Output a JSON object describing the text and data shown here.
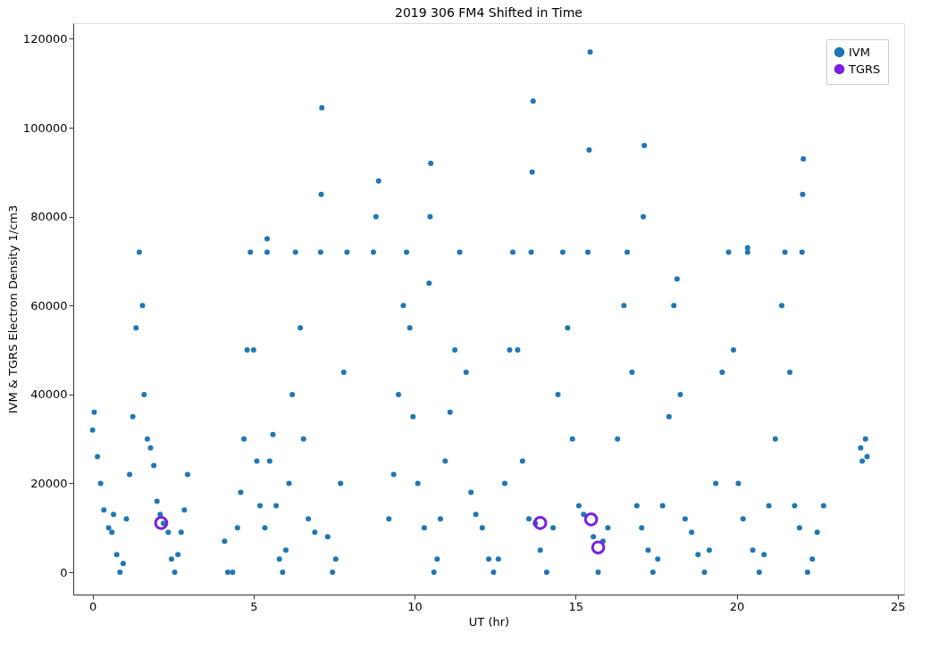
{
  "chart_data": {
    "type": "scatter",
    "title": "2019 306 FM4 Shifted in Time",
    "xlabel": "UT (hr)",
    "ylabel": "IVM & TGRS Electron Density 1/cm3",
    "xlim": [
      -0.6,
      25.2
    ],
    "ylim": [
      -5000,
      123500
    ],
    "xticks": [
      0,
      5,
      10,
      15,
      20,
      25
    ],
    "yticks": [
      0,
      20000,
      40000,
      60000,
      80000,
      100000,
      120000
    ],
    "grid": false,
    "legend": "top right",
    "marker": "circle",
    "series": [
      {
        "name": "IVM",
        "color": "#1f77b4",
        "x": [
          0.0,
          0.05,
          0.15,
          0.25,
          0.35,
          0.5,
          0.6,
          0.65,
          0.75,
          0.85,
          0.95,
          1.05,
          1.15,
          1.25,
          1.35,
          1.45,
          1.55,
          1.6,
          1.7,
          1.8,
          1.9,
          2.0,
          2.1,
          2.2,
          2.35,
          2.45,
          2.55,
          2.65,
          2.75,
          2.85,
          2.95,
          4.1,
          4.2,
          4.35,
          4.5,
          4.6,
          4.7,
          4.8,
          4.9,
          5.0,
          5.1,
          5.2,
          5.35,
          5.42,
          5.42,
          5.5,
          5.6,
          5.7,
          5.8,
          5.9,
          6.0,
          6.1,
          6.2,
          6.3,
          6.45,
          6.55,
          6.7,
          6.9,
          7.08,
          7.1,
          7.12,
          7.3,
          7.45,
          7.55,
          7.7,
          7.8,
          7.9,
          8.72,
          8.8,
          8.88,
          9.2,
          9.35,
          9.5,
          9.65,
          9.75,
          9.85,
          9.95,
          10.1,
          10.3,
          10.45,
          10.48,
          10.5,
          10.6,
          10.7,
          10.8,
          10.95,
          11.1,
          11.25,
          11.4,
          11.6,
          11.75,
          11.9,
          12.1,
          12.3,
          12.45,
          12.6,
          12.8,
          12.95,
          13.05,
          13.2,
          13.35,
          13.55,
          13.62,
          13.65,
          13.68,
          13.75,
          13.9,
          14.1,
          14.3,
          14.45,
          14.6,
          14.75,
          14.9,
          15.1,
          15.25,
          15.38,
          15.42,
          15.45,
          15.55,
          15.7,
          15.85,
          16.0,
          16.3,
          16.5,
          16.6,
          16.75,
          16.9,
          17.05,
          17.1,
          17.13,
          17.25,
          17.4,
          17.55,
          17.7,
          17.9,
          18.05,
          18.15,
          18.25,
          18.4,
          18.6,
          18.8,
          19.0,
          19.15,
          19.35,
          19.55,
          19.75,
          19.9,
          20.05,
          20.2,
          20.34,
          20.34,
          20.5,
          20.7,
          20.85,
          21.0,
          21.2,
          21.4,
          21.5,
          21.65,
          21.8,
          21.95,
          22.03,
          22.05,
          22.07,
          22.2,
          22.35,
          22.5,
          22.7,
          23.85,
          23.9,
          24.0,
          24.05
        ],
        "values": [
          32000,
          36000,
          26000,
          20000,
          14000,
          10000,
          9000,
          13000,
          4000,
          0,
          2000,
          12000,
          22000,
          35000,
          55000,
          72000,
          60000,
          40000,
          30000,
          28000,
          24000,
          16000,
          13000,
          11000,
          9000,
          3000,
          0,
          4000,
          9000,
          14000,
          22000,
          7000,
          0,
          0,
          10000,
          18000,
          30000,
          50000,
          72000,
          50000,
          25000,
          15000,
          10000,
          72000,
          75000,
          25000,
          31000,
          15000,
          3000,
          0,
          5000,
          20000,
          40000,
          72000,
          55000,
          30000,
          12000,
          9000,
          72000,
          85000,
          104500,
          8000,
          0,
          3000,
          20000,
          45000,
          72000,
          72000,
          80000,
          88000,
          12000,
          22000,
          40000,
          60000,
          72000,
          55000,
          35000,
          20000,
          10000,
          65000,
          80000,
          92000,
          0,
          3000,
          12000,
          25000,
          36000,
          50000,
          72000,
          45000,
          18000,
          13000,
          10000,
          3000,
          0,
          3000,
          20000,
          50000,
          72000,
          50000,
          25000,
          12000,
          72000,
          90000,
          106000,
          11000,
          5000,
          0,
          10000,
          40000,
          72000,
          55000,
          30000,
          15000,
          13000,
          72000,
          95000,
          117000,
          8000,
          0,
          7000,
          10000,
          30000,
          60000,
          72000,
          45000,
          15000,
          10000,
          80000,
          96000,
          5000,
          0,
          3000,
          15000,
          35000,
          60000,
          66000,
          40000,
          12000,
          9000,
          4000,
          0,
          5000,
          20000,
          45000,
          72000,
          50000,
          20000,
          12000,
          72000,
          73000,
          5000,
          0,
          4000,
          15000,
          30000,
          60000,
          72000,
          45000,
          15000,
          10000,
          72000,
          85000,
          93000,
          0,
          3000,
          9000,
          15000,
          28000,
          25000,
          30000,
          26000
        ]
      },
      {
        "name": "TGRS",
        "color": "#7b1fe0",
        "x": [
          2.13,
          13.9,
          15.48,
          15.7
        ],
        "values": [
          11100,
          11100,
          11900,
          5600
        ]
      }
    ]
  }
}
